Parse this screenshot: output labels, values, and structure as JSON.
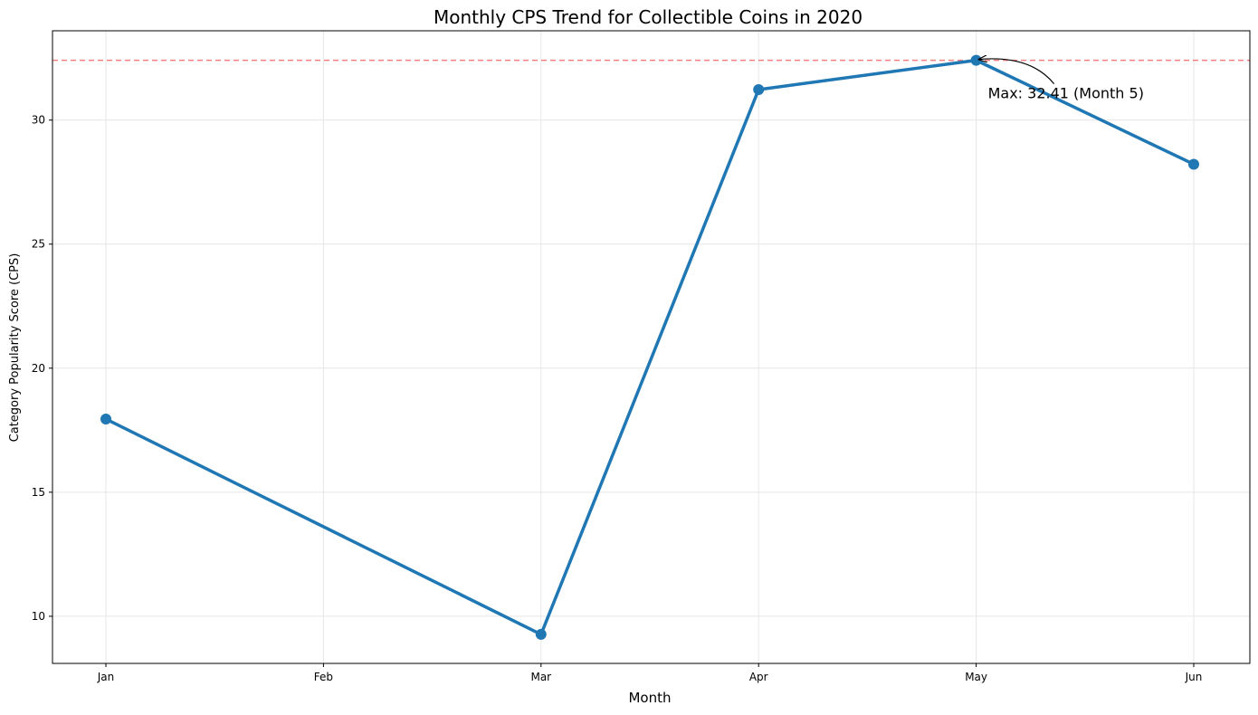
{
  "chart_data": {
    "type": "line",
    "title": "Monthly CPS Trend for Collectible Coins in 2020",
    "xlabel": "Month",
    "ylabel": "Category Popularity Score (CPS)",
    "categories": [
      "Jan",
      "Feb",
      "Mar",
      "Apr",
      "May",
      "Jun"
    ],
    "series": [
      {
        "name": "CPS",
        "color": "#1f77b4",
        "points": [
          {
            "month": "Jan",
            "value": 17.95
          },
          {
            "month": "Mar",
            "value": 9.27
          },
          {
            "month": "Apr",
            "value": 31.23
          },
          {
            "month": "May",
            "value": 32.41
          },
          {
            "month": "Jun",
            "value": 28.22
          }
        ]
      }
    ],
    "reference_line": {
      "value": 32.41,
      "color": "#f08080",
      "style": "dashed"
    },
    "annotation": {
      "text": "Max: 32.41 (Month 5)",
      "month": "May",
      "value": 32.41
    },
    "ylim": [
      8.1,
      33.6
    ],
    "yticks": [
      10,
      15,
      20,
      25,
      30
    ],
    "grid": true
  }
}
